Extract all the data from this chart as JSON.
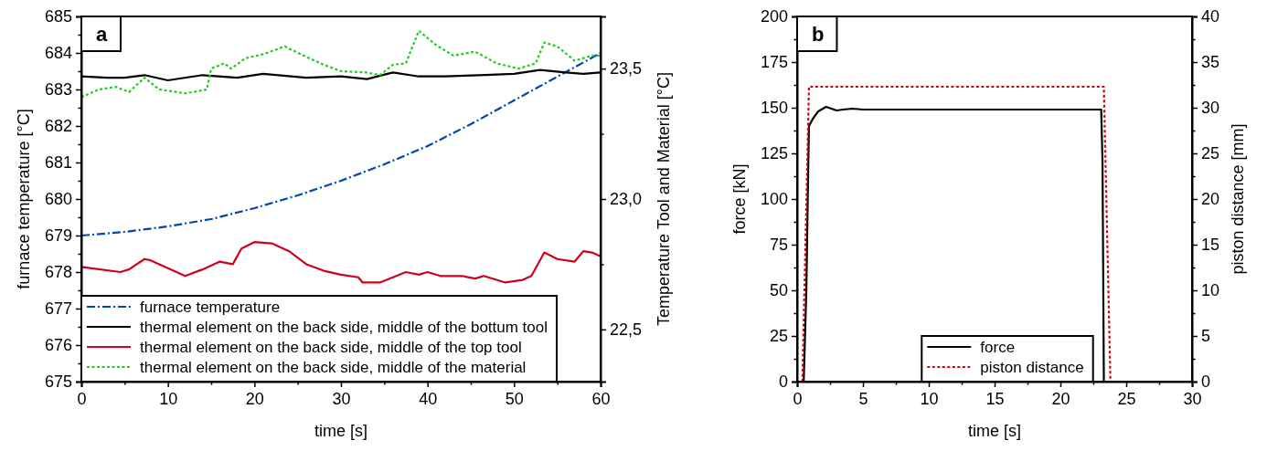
{
  "chart_data": [
    {
      "type": "line",
      "xlabel": "time [s]",
      "ylabel": "furnace temperature [°C]",
      "y2label": "Temperature Tool and Material [°C]",
      "annotations": [
        "a"
      ],
      "legend": "bottom left",
      "grid": false,
      "xlim": [
        0,
        60
      ],
      "xticks": [
        0,
        {
          "value": 5,
          "label": null
        },
        10,
        {
          "value": 15,
          "label": null
        },
        20,
        {
          "value": 25,
          "label": null
        },
        30,
        {
          "value": 35,
          "label": null
        },
        40,
        {
          "value": 45,
          "label": null
        },
        50,
        {
          "value": 55,
          "label": null
        },
        60
      ],
      "ylim": [
        675,
        685
      ],
      "yticks": [
        675,
        {
          "value": 675.5,
          "label": null
        },
        676,
        {
          "value": 676.5,
          "label": null
        },
        677,
        {
          "value": 677.5,
          "label": null
        },
        678,
        {
          "value": 678.5,
          "label": null
        },
        679,
        {
          "value": 679.5,
          "label": null
        },
        680,
        {
          "value": 680.5,
          "label": null
        },
        681,
        {
          "value": 681.5,
          "label": null
        },
        682,
        {
          "value": 682.5,
          "label": null
        },
        683,
        {
          "value": 683.5,
          "label": null
        },
        684,
        {
          "value": 684.5,
          "label": null
        },
        685
      ],
      "y2lim": [
        22.3,
        23.7
      ],
      "y2ticks": [
        {
          "value": 22.5,
          "label": "22,5"
        },
        {
          "value": 22.75,
          "label": null
        },
        {
          "value": 23.0,
          "label": "23,0"
        },
        {
          "value": 23.25,
          "label": null
        },
        {
          "value": 23.5,
          "label": "23,5"
        }
      ],
      "series": [
        {
          "name": "furnace temperature",
          "color": "#0047ab",
          "line_style": "dashdot",
          "x": [
            0,
            5,
            10,
            15,
            20,
            25,
            30,
            35,
            40,
            45,
            50,
            55,
            60
          ],
          "values": [
            679.0,
            679.1,
            679.25,
            679.45,
            679.75,
            680.1,
            680.5,
            680.95,
            681.45,
            682.05,
            682.7,
            683.35,
            684.0
          ]
        },
        {
          "name": "thermal element on the back side, middle of the bottum tool",
          "color": "#000000",
          "line_style": "solid",
          "axis": "y2",
          "x": [
            0,
            3,
            5,
            7.3,
            10,
            14,
            18,
            21,
            26,
            30,
            33,
            36,
            39,
            42,
            46,
            50,
            53,
            56,
            58,
            60
          ],
          "values": [
            23.47,
            23.465,
            23.465,
            23.475,
            23.455,
            23.475,
            23.465,
            23.48,
            23.465,
            23.47,
            23.46,
            23.485,
            23.47,
            23.47,
            23.475,
            23.48,
            23.495,
            23.485,
            23.48,
            23.485
          ]
        },
        {
          "name": "thermal element on the back side, middle of the top tool",
          "color": "#d0021b",
          "line_style": "solid",
          "axis": "y2",
          "x": [
            0,
            4.5,
            5.5,
            7.3,
            8,
            10,
            12,
            14,
            16,
            17.5,
            18.5,
            20,
            22,
            24,
            26,
            28,
            30,
            32,
            32.5,
            34.5,
            36,
            37.5,
            39,
            40,
            41.5,
            44,
            45.5,
            46.5,
            49,
            51,
            52,
            53.5,
            55,
            57,
            58,
            59,
            60
          ],
          "values": [
            22.74,
            22.72,
            22.73,
            22.77,
            22.765,
            22.735,
            22.705,
            22.73,
            22.76,
            22.75,
            22.81,
            22.835,
            22.83,
            22.8,
            22.75,
            22.725,
            22.71,
            22.7,
            22.68,
            22.68,
            22.7,
            22.72,
            22.71,
            22.72,
            22.705,
            22.705,
            22.695,
            22.705,
            22.68,
            22.69,
            22.705,
            22.795,
            22.77,
            22.76,
            22.8,
            22.795,
            22.78
          ]
        },
        {
          "name": "thermal element on the back side, middle of the material",
          "color": "#22cc22",
          "line_style": "dotted",
          "axis": "y2",
          "x": [
            0,
            2,
            4,
            5.5,
            7.3,
            9,
            12,
            14.5,
            15,
            16.5,
            17.3,
            19,
            21,
            23.5,
            26,
            28,
            30,
            33,
            34.5,
            36,
            37.5,
            39,
            41,
            43,
            45.5,
            48,
            50.5,
            52.5,
            53.5,
            55,
            57,
            59,
            60
          ],
          "values": [
            23.39,
            23.42,
            23.43,
            23.41,
            23.465,
            23.42,
            23.405,
            23.42,
            23.5,
            23.52,
            23.5,
            23.54,
            23.555,
            23.585,
            23.545,
            23.515,
            23.49,
            23.485,
            23.475,
            23.515,
            23.52,
            23.645,
            23.59,
            23.55,
            23.565,
            23.52,
            23.5,
            23.52,
            23.6,
            23.585,
            23.53,
            23.55,
            23.55
          ]
        }
      ]
    },
    {
      "type": "line",
      "xlabel": "time [s]",
      "ylabel": "force [kN]",
      "y2label": "piston distance [mm]",
      "annotations": [
        "b"
      ],
      "legend": "bottom",
      "grid": false,
      "xlim": [
        0,
        30
      ],
      "xticks": [
        0,
        {
          "value": 2.5,
          "label": null
        },
        5,
        {
          "value": 7.5,
          "label": null
        },
        10,
        {
          "value": 12.5,
          "label": null
        },
        15,
        {
          "value": 17.5,
          "label": null
        },
        20,
        {
          "value": 22.5,
          "label": null
        },
        25,
        {
          "value": 27.5,
          "label": null
        },
        30
      ],
      "ylim": [
        0,
        200
      ],
      "yticks": [
        0,
        {
          "value": 12.5,
          "label": null
        },
        25,
        {
          "value": 37.5,
          "label": null
        },
        50,
        {
          "value": 62.5,
          "label": null
        },
        75,
        {
          "value": 87.5,
          "label": null
        },
        100,
        {
          "value": 112.5,
          "label": null
        },
        125,
        {
          "value": 137.5,
          "label": null
        },
        150,
        {
          "value": 162.5,
          "label": null
        },
        175,
        {
          "value": 187.5,
          "label": null
        },
        200
      ],
      "y2lim": [
        0,
        40
      ],
      "y2ticks": [
        0,
        {
          "value": 2.5,
          "label": null
        },
        5,
        {
          "value": 7.5,
          "label": null
        },
        10,
        {
          "value": 12.5,
          "label": null
        },
        15,
        {
          "value": 17.5,
          "label": null
        },
        20,
        {
          "value": 22.5,
          "label": null
        },
        25,
        {
          "value": 27.5,
          "label": null
        },
        30,
        {
          "value": 32.5,
          "label": null
        },
        35,
        {
          "value": 37.5,
          "label": null
        },
        40
      ],
      "series": [
        {
          "name": "force",
          "color": "#000000",
          "line_style": "solid",
          "x": [
            0.5,
            0.7,
            0.85,
            0.9,
            1.2,
            1.6,
            2.2,
            2.6,
            3.0,
            3.5,
            4.2,
            5,
            10,
            15,
            20,
            23.1,
            23.2,
            23.3
          ],
          "values": [
            0,
            50,
            120,
            140,
            144,
            148,
            150.5,
            149.5,
            148.5,
            149,
            149.5,
            149,
            149,
            149,
            149,
            149,
            120,
            0
          ]
        },
        {
          "name": "piston distance",
          "color": "#d0021b",
          "line_style": "dotted",
          "axis": "y2",
          "x": [
            0.4,
            0.9,
            5,
            10,
            15,
            20,
            23.3,
            23.8
          ],
          "values": [
            0,
            32.3,
            32.3,
            32.3,
            32.3,
            32.3,
            32.3,
            0
          ]
        }
      ]
    }
  ]
}
